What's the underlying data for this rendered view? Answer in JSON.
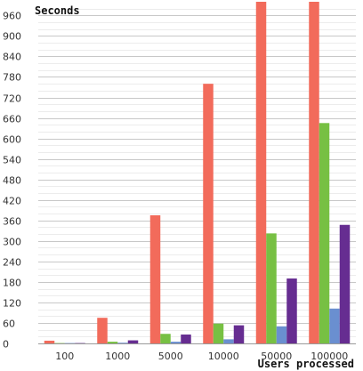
{
  "chart_data": {
    "type": "bar",
    "title": "",
    "xlabel": "Users processed",
    "ylabel": "Seconds",
    "categories": [
      "100",
      "1000",
      "5000",
      "10000",
      "50000",
      "100000"
    ],
    "series": [
      {
        "color": "#f26b5b",
        "values": [
          8,
          75,
          375,
          760,
          1010,
          1010
        ]
      },
      {
        "color": "#77c043",
        "values": [
          1,
          5,
          28,
          58,
          322,
          645
        ]
      },
      {
        "color": "#6a8fd0",
        "values": [
          1,
          2,
          5,
          12,
          50,
          102
        ]
      },
      {
        "color": "#662d91",
        "values": [
          1,
          9,
          26,
          53,
          190,
          347
        ]
      }
    ],
    "ylim": [
      0,
      1000
    ],
    "yticks": [
      0,
      60,
      120,
      180,
      240,
      300,
      360,
      420,
      480,
      540,
      600,
      660,
      720,
      780,
      840,
      900,
      960
    ],
    "grid": true,
    "legend": "none"
  }
}
